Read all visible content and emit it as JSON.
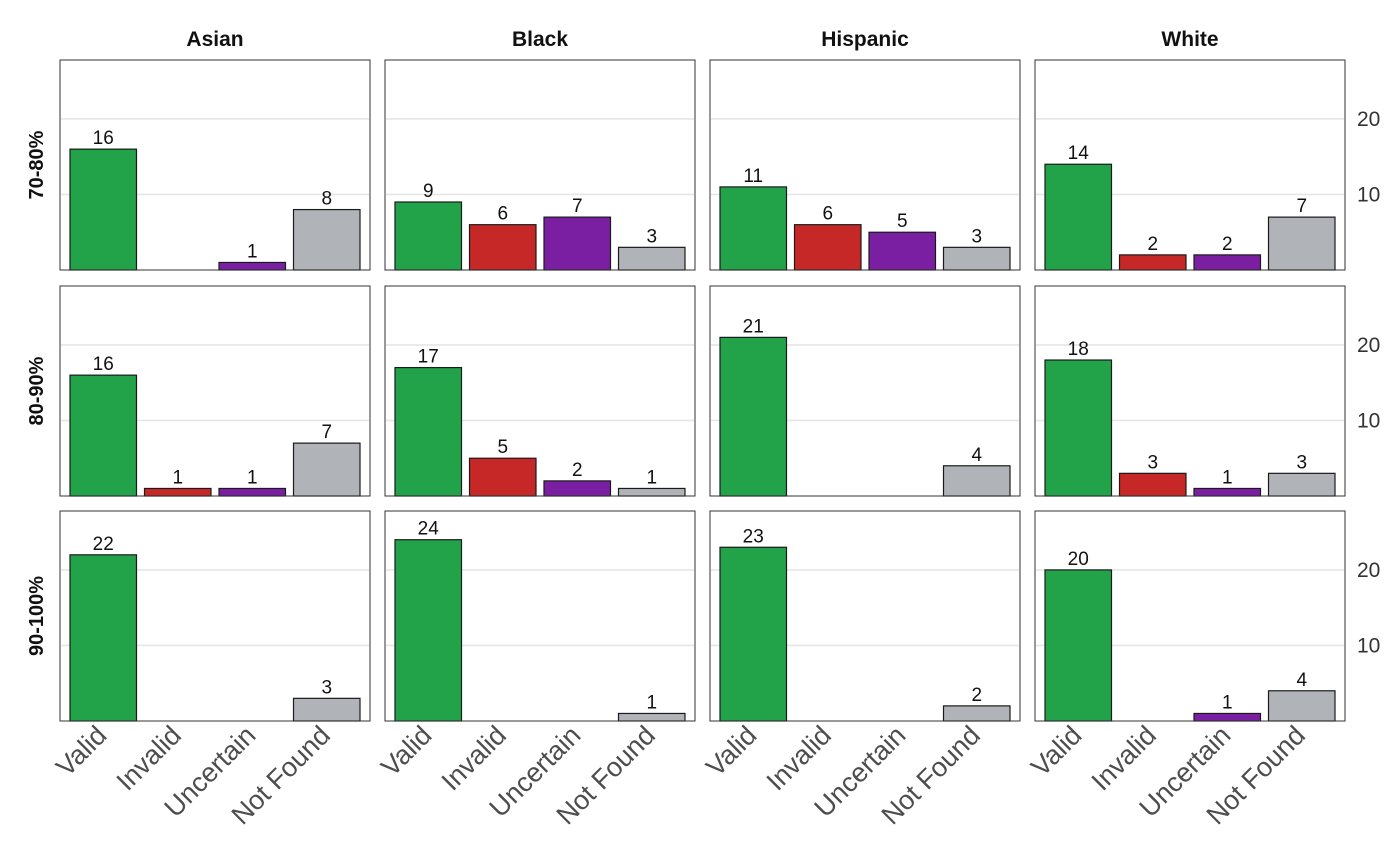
{
  "chart_data": {
    "type": "bar",
    "facets": {
      "columns": [
        "Asian",
        "Black",
        "Hispanic",
        "White"
      ],
      "rows": [
        "70-80%",
        "80-90%",
        "90-100%"
      ]
    },
    "categories": [
      "Valid",
      "Invalid",
      "Uncertain",
      "Not Found"
    ],
    "colors": {
      "Valid": "#22a34a",
      "Invalid": "#c62828",
      "Uncertain": "#7b1fa2",
      "Not Found": "#b0b4b8"
    },
    "panels": [
      [
        [
          16,
          0,
          1,
          8
        ],
        [
          9,
          6,
          7,
          3
        ],
        [
          11,
          6,
          5,
          3
        ],
        [
          14,
          2,
          2,
          7
        ]
      ],
      [
        [
          16,
          1,
          1,
          7
        ],
        [
          17,
          5,
          2,
          1
        ],
        [
          21,
          0,
          0,
          4
        ],
        [
          18,
          3,
          1,
          3
        ]
      ],
      [
        [
          22,
          0,
          0,
          3
        ],
        [
          24,
          0,
          0,
          1
        ],
        [
          23,
          0,
          0,
          2
        ],
        [
          20,
          0,
          1,
          4
        ]
      ]
    ],
    "y_ticks": [
      10,
      20
    ],
    "ylim": [
      0,
      27.8
    ],
    "grid": true,
    "title": "",
    "xlabel": "",
    "ylabel": ""
  }
}
